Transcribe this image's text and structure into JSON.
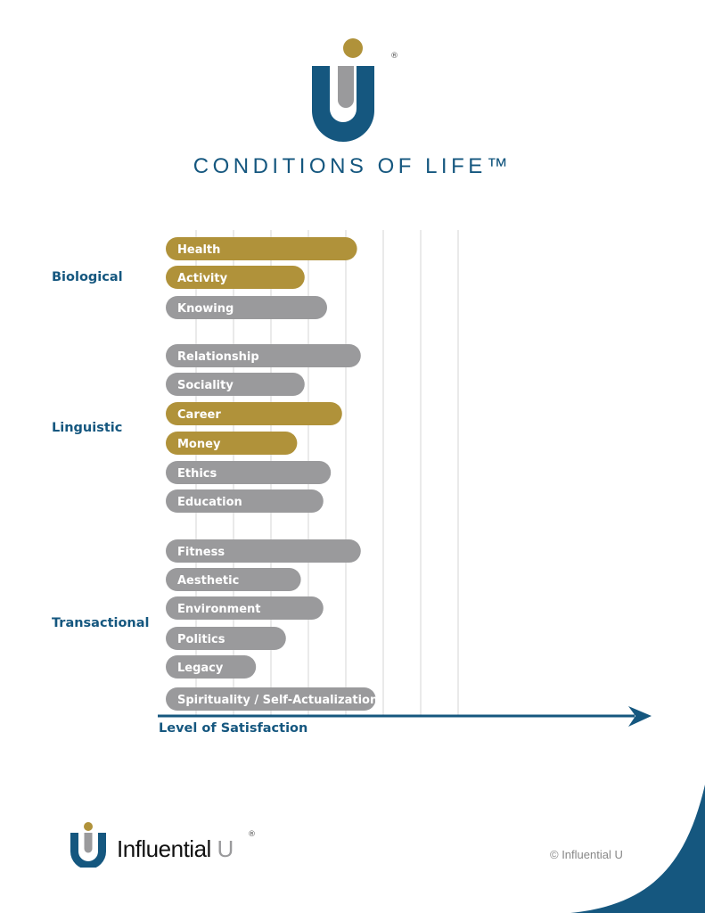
{
  "header": {
    "title": "CONDITIONS OF LIFE™",
    "registered": "®"
  },
  "footer": {
    "brand_name": "Influential",
    "brand_u": "U",
    "registered": "®",
    "copyright": "© Influential U"
  },
  "colors": {
    "gold": "#B0923A",
    "gray": "#9A9A9C",
    "blue": "#15577F",
    "grid": "#D4D4D6"
  },
  "chart_data": {
    "type": "bar",
    "orientation": "horizontal",
    "title": "CONDITIONS OF LIFE™",
    "xlabel": "Level of Satisfaction",
    "ylabel": "",
    "xlim": [
      0,
      8
    ],
    "grid": true,
    "groups": [
      {
        "name": "Biological",
        "items": [
          {
            "label": "Health",
            "value": 5.3,
            "highlight": true
          },
          {
            "label": "Activity",
            "value": 3.9,
            "highlight": true
          },
          {
            "label": "Knowing",
            "value": 4.5,
            "highlight": false
          }
        ]
      },
      {
        "name": "Linguistic",
        "items": [
          {
            "label": "Relationship",
            "value": 5.4,
            "highlight": false
          },
          {
            "label": "Sociality",
            "value": 3.9,
            "highlight": false
          },
          {
            "label": "Career",
            "value": 4.9,
            "highlight": true
          },
          {
            "label": "Money",
            "value": 3.7,
            "highlight": true
          },
          {
            "label": "Ethics",
            "value": 4.6,
            "highlight": false
          },
          {
            "label": "Education",
            "value": 4.4,
            "highlight": false
          }
        ]
      },
      {
        "name": "Transactional",
        "items": [
          {
            "label": "Fitness",
            "value": 5.4,
            "highlight": false
          },
          {
            "label": "Aesthetic",
            "value": 3.8,
            "highlight": false
          },
          {
            "label": "Environment",
            "value": 4.4,
            "highlight": false
          },
          {
            "label": "Politics",
            "value": 3.4,
            "highlight": false
          },
          {
            "label": "Legacy",
            "value": 2.6,
            "highlight": false
          },
          {
            "label": "Spirituality / Self-Actualization",
            "value": 5.8,
            "highlight": false
          }
        ]
      }
    ]
  }
}
